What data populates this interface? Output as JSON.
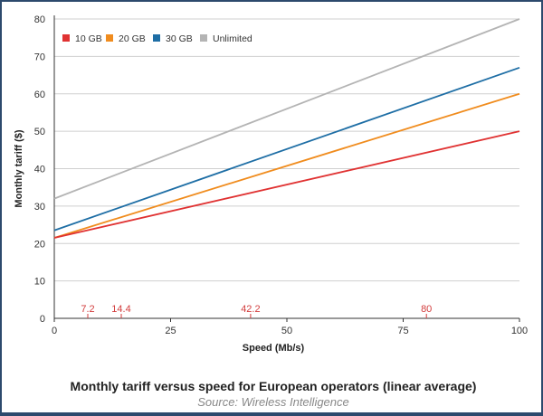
{
  "chart_data": {
    "type": "line",
    "title": "Monthly tariff versus speed for European operators (linear average)",
    "subtitle": "Source: Wireless Intelligence",
    "xlabel": "Speed (Mb/s)",
    "ylabel": "Monthly tariff ($)",
    "xlim": [
      0,
      100
    ],
    "ylim": [
      0,
      80
    ],
    "x_ticks": [
      "0",
      "25",
      "50",
      "75",
      "100"
    ],
    "y_ticks": [
      "0",
      "10",
      "20",
      "30",
      "40",
      "50",
      "60",
      "70",
      "80"
    ],
    "grid": "horizontal",
    "legend_position": "top-left",
    "x": [
      0,
      100
    ],
    "series": [
      {
        "name": "10 GB",
        "color": "#e03232",
        "values": [
          21.5,
          50
        ]
      },
      {
        "name": "20 GB",
        "color": "#f08c1e",
        "values": [
          21.5,
          60
        ]
      },
      {
        "name": "30 GB",
        "color": "#1e6ea5",
        "values": [
          23.5,
          67
        ]
      },
      {
        "name": "Unlimited",
        "color": "#b4b4b4",
        "values": [
          32,
          80
        ]
      }
    ],
    "annotations": [
      {
        "label": "7.2",
        "x": 7.2
      },
      {
        "label": "14.4",
        "x": 14.4
      },
      {
        "label": "42.2",
        "x": 42.2
      },
      {
        "label": "80",
        "x": 80
      }
    ],
    "annotation_color": "#d23c3c"
  }
}
